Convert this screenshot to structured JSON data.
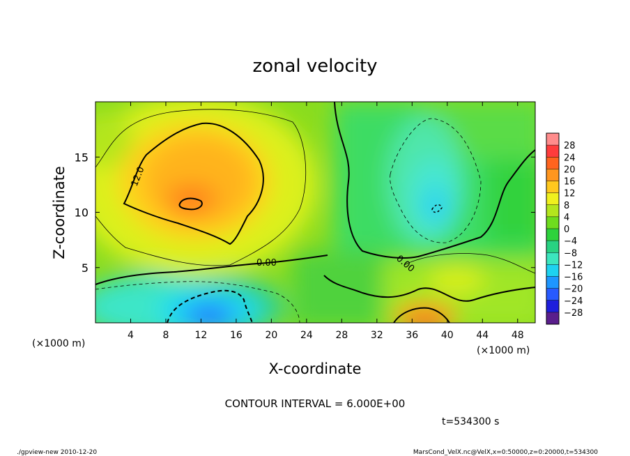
{
  "chart_data": {
    "type": "heatmap",
    "title": "zonal velocity",
    "xlabel": "X-coordinate",
    "ylabel": "Z-coordinate",
    "x_unit_label": "(×1000 m)",
    "y_unit_label": "(×1000 m)",
    "xlim": [
      0,
      50
    ],
    "ylim": [
      0,
      20
    ],
    "x_ticks": [
      4,
      8,
      12,
      16,
      20,
      24,
      28,
      32,
      36,
      40,
      44,
      48
    ],
    "y_ticks": [
      5,
      10,
      15
    ],
    "colorbar": {
      "levels": [
        -28,
        -24,
        -20,
        -16,
        -12,
        -8,
        -4,
        0,
        4,
        8,
        12,
        16,
        20,
        24,
        28
      ],
      "colors": [
        "#5a1e8c",
        "#1e1edc",
        "#285aff",
        "#1e96ff",
        "#1ed2f0",
        "#3ce6be",
        "#28d282",
        "#2dd23c",
        "#6edc1e",
        "#b4e61e",
        "#f0f01e",
        "#ffc81e",
        "#ff961e",
        "#ff641e",
        "#ff3c3c",
        "#ff8c8c"
      ]
    },
    "contour_interval_text": "CONTOUR INTERVAL = 6.000E+00",
    "contour_labels": [
      "12.0",
      "0.00",
      "0.00"
    ],
    "features": [
      {
        "name": "positive max",
        "x": 11,
        "z": 10.5,
        "value": 20
      },
      {
        "name": "negative min",
        "x": 13,
        "z": 1.5,
        "value": -20
      },
      {
        "name": "negative min",
        "x": 38.5,
        "z": 10,
        "value": -12
      },
      {
        "name": "positive max",
        "x": 38,
        "z": 0.5,
        "value": 18
      }
    ],
    "time_label": "t=534300 s"
  },
  "footer": {
    "left": "./gpview-new  2010-12-20",
    "right": "MarsCond_VelX.nc@VelX,x=0:50000,z=0:20000,t=534300"
  }
}
